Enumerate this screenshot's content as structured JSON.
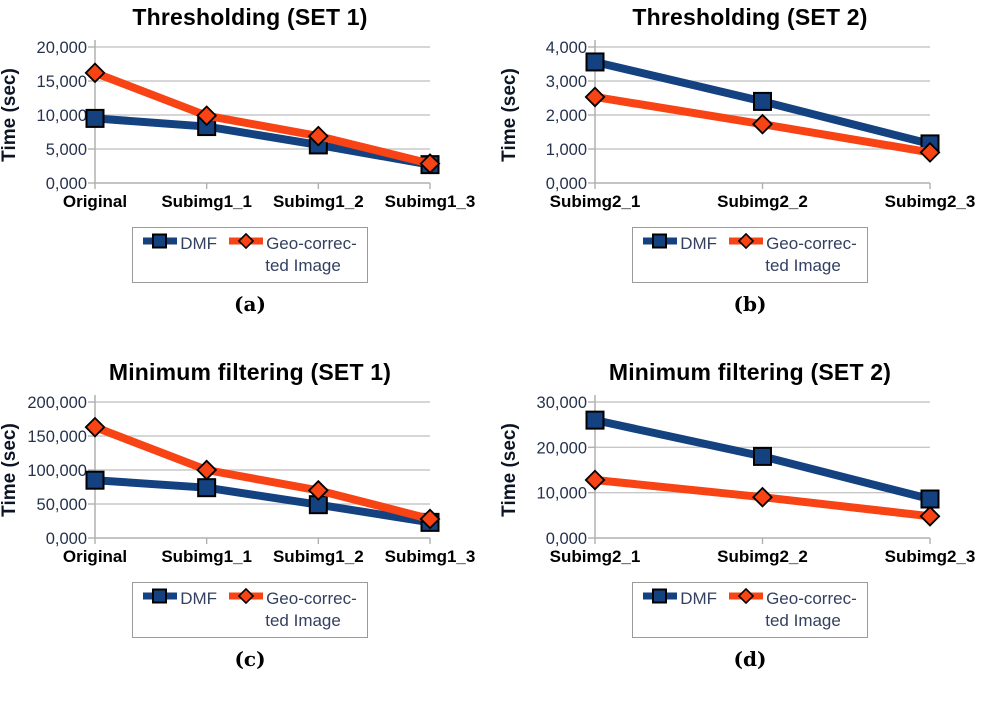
{
  "figure": {
    "legend": {
      "dmf": "DMF",
      "geo_line1": "Geo-correc-",
      "geo_line2": "ted Image"
    }
  },
  "colors": {
    "dmf": "#144280",
    "geo": "#f84314",
    "grid": "#c8c8c8",
    "axis": "#b0b0b0",
    "marker_outline": "#000000",
    "tick_text": "#26324e",
    "legend_text": "#33405f",
    "legend_border": "#9b9b9b"
  },
  "chart_data": [
    {
      "type": "line",
      "title": "Thresholding (SET 1)",
      "caption": "(a)",
      "ylabel": "Time (sec)",
      "xlabel": "",
      "ylim": [
        0,
        20000
      ],
      "grid": true,
      "legend_position": "bottom",
      "categories": [
        "Original",
        "Subimg1_1",
        "Subimg1_2",
        "Subimg1_3"
      ],
      "yticks": [
        {
          "v": 0,
          "label": "0,000"
        },
        {
          "v": 5000,
          "label": "5,000"
        },
        {
          "v": 10000,
          "label": "10,000"
        },
        {
          "v": 15000,
          "label": "15,000"
        },
        {
          "v": 20000,
          "label": "20,000"
        }
      ],
      "series": [
        {
          "name": "DMF",
          "marker": "square",
          "color_key": "dmf",
          "values": [
            9500,
            8300,
            5600,
            2700
          ]
        },
        {
          "name": "Geo-corrected Image",
          "marker": "diamond",
          "color_key": "geo",
          "values": [
            16200,
            9900,
            6900,
            2850
          ]
        }
      ]
    },
    {
      "type": "line",
      "title": "Thresholding (SET 2)",
      "caption": "(b)",
      "ylabel": "Time (sec)",
      "xlabel": "",
      "ylim": [
        0,
        4000
      ],
      "grid": true,
      "legend_position": "bottom",
      "categories": [
        "Subimg2_1",
        "Subimg2_2",
        "Subimg2_3"
      ],
      "yticks": [
        {
          "v": 0,
          "label": "0,000"
        },
        {
          "v": 1000,
          "label": "1,000"
        },
        {
          "v": 2000,
          "label": "2,000"
        },
        {
          "v": 3000,
          "label": "3,000"
        },
        {
          "v": 4000,
          "label": "4,000"
        }
      ],
      "series": [
        {
          "name": "DMF",
          "marker": "square",
          "color_key": "dmf",
          "values": [
            3560,
            2400,
            1150
          ]
        },
        {
          "name": "Geo-corrected Image",
          "marker": "diamond",
          "color_key": "geo",
          "values": [
            2530,
            1730,
            900
          ]
        }
      ]
    },
    {
      "type": "line",
      "title": "Minimum filtering (SET 1)",
      "caption": "(c)",
      "ylabel": "Time (sec)",
      "xlabel": "",
      "ylim": [
        0,
        200000
      ],
      "grid": true,
      "legend_position": "bottom",
      "categories": [
        "Original",
        "Subimg1_1",
        "Subimg1_2",
        "Subimg1_3"
      ],
      "yticks": [
        {
          "v": 0,
          "label": "0,000"
        },
        {
          "v": 50000,
          "label": "50,000"
        },
        {
          "v": 100000,
          "label": "100,000"
        },
        {
          "v": 150000,
          "label": "150,000"
        },
        {
          "v": 200000,
          "label": "200,000"
        }
      ],
      "series": [
        {
          "name": "DMF",
          "marker": "square",
          "color_key": "dmf",
          "values": [
            85000,
            74000,
            49000,
            23000
          ]
        },
        {
          "name": "Geo-corrected Image",
          "marker": "diamond",
          "color_key": "geo",
          "values": [
            163000,
            100000,
            70000,
            28000
          ]
        }
      ]
    },
    {
      "type": "line",
      "title": "Minimum filtering (SET 2)",
      "caption": "(d)",
      "ylabel": "Time (sec)",
      "xlabel": "",
      "ylim": [
        0,
        30000
      ],
      "grid": true,
      "legend_position": "bottom",
      "categories": [
        "Subimg2_1",
        "Subimg2_2",
        "Subimg2_3"
      ],
      "yticks": [
        {
          "v": 0,
          "label": "0,000"
        },
        {
          "v": 10000,
          "label": "10,000"
        },
        {
          "v": 20000,
          "label": "20,000"
        },
        {
          "v": 30000,
          "label": "30,000"
        }
      ],
      "series": [
        {
          "name": "DMF",
          "marker": "square",
          "color_key": "dmf",
          "values": [
            26000,
            18000,
            8600
          ]
        },
        {
          "name": "Geo-corrected Image",
          "marker": "diamond",
          "color_key": "geo",
          "values": [
            12800,
            9000,
            4800
          ]
        }
      ]
    }
  ]
}
